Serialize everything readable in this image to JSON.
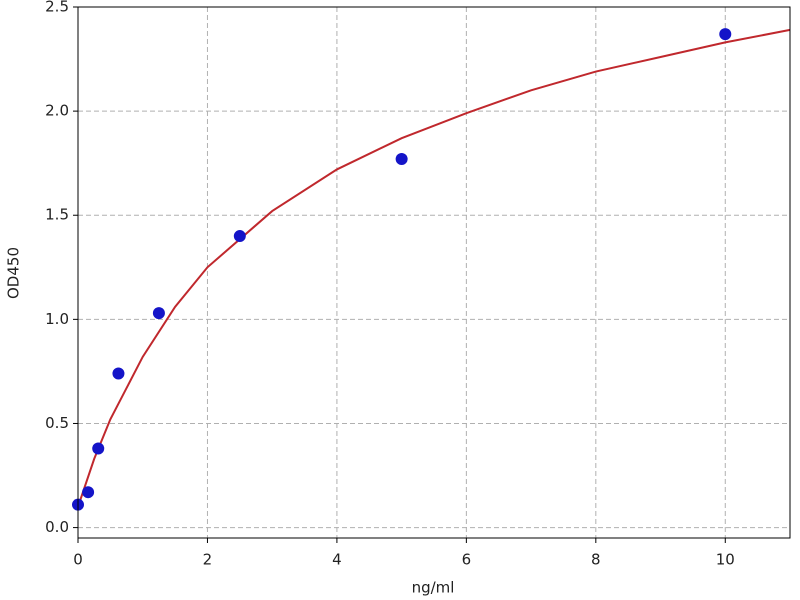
{
  "chart_data": {
    "type": "scatter",
    "xlabel": "ng/ml",
    "ylabel": "OD450",
    "xlim": [
      0,
      11
    ],
    "xticks": [
      0,
      2,
      4,
      6,
      8,
      10
    ],
    "ylim": [
      -0.05,
      2.5
    ],
    "yticks": [
      {
        "value": 0,
        "label": "0.0"
      },
      0.5,
      {
        "value": 1,
        "label": "1.0"
      },
      1.5,
      {
        "value": 2,
        "label": "2.0"
      },
      2.5
    ],
    "grid": true,
    "points": {
      "color": "#1414c8",
      "x": [
        0,
        0.156,
        0.3125,
        0.625,
        1.25,
        2.5,
        5,
        10
      ],
      "y": [
        0.11,
        0.17,
        0.38,
        0.74,
        1.03,
        1.4,
        1.77,
        2.37
      ]
    },
    "curve": {
      "color": "#c0282d",
      "x": [
        0,
        0.25,
        0.5,
        1,
        1.5,
        2,
        3,
        4,
        5,
        6,
        7,
        8,
        9,
        10,
        11
      ],
      "y": [
        0.1,
        0.33,
        0.52,
        0.82,
        1.06,
        1.25,
        1.52,
        1.72,
        1.87,
        1.99,
        2.1,
        2.19,
        2.26,
        2.33,
        2.39
      ]
    }
  }
}
